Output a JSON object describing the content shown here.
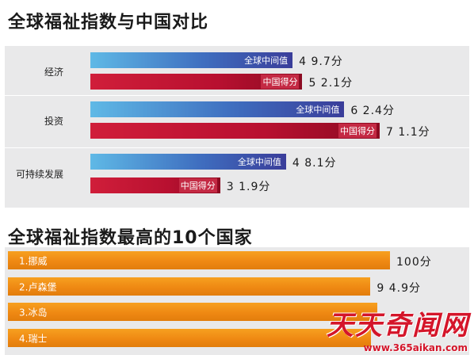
{
  "chart_data": [
    {
      "type": "bar",
      "title": "全球福祉指数与中国对比",
      "categories": [
        "经济",
        "投资",
        "可持续发展"
      ],
      "series": [
        {
          "name": "全球中间值",
          "values": [
            49.7,
            62.4,
            48.1
          ]
        },
        {
          "name": "中国得分",
          "values": [
            52.1,
            71.1,
            31.9
          ]
        }
      ],
      "unit": "分",
      "orientation": "horizontal",
      "colors": {
        "全球中间值": "#3f6fc0",
        "中国得分": "#c0102c"
      }
    },
    {
      "type": "bar",
      "title": "全球福祉指数最高的10个国家",
      "categories": [
        "1.挪威",
        "2.卢森堡",
        "3.冰岛",
        "4.瑞士"
      ],
      "values": [
        100,
        94.9,
        null,
        null
      ],
      "unit": "分",
      "orientation": "horizontal",
      "colors": {
        "bar": "#ee8712"
      }
    }
  ],
  "watermark": {
    "logo_text": "天天奇闻网",
    "url": "www.365aikan.com"
  }
}
